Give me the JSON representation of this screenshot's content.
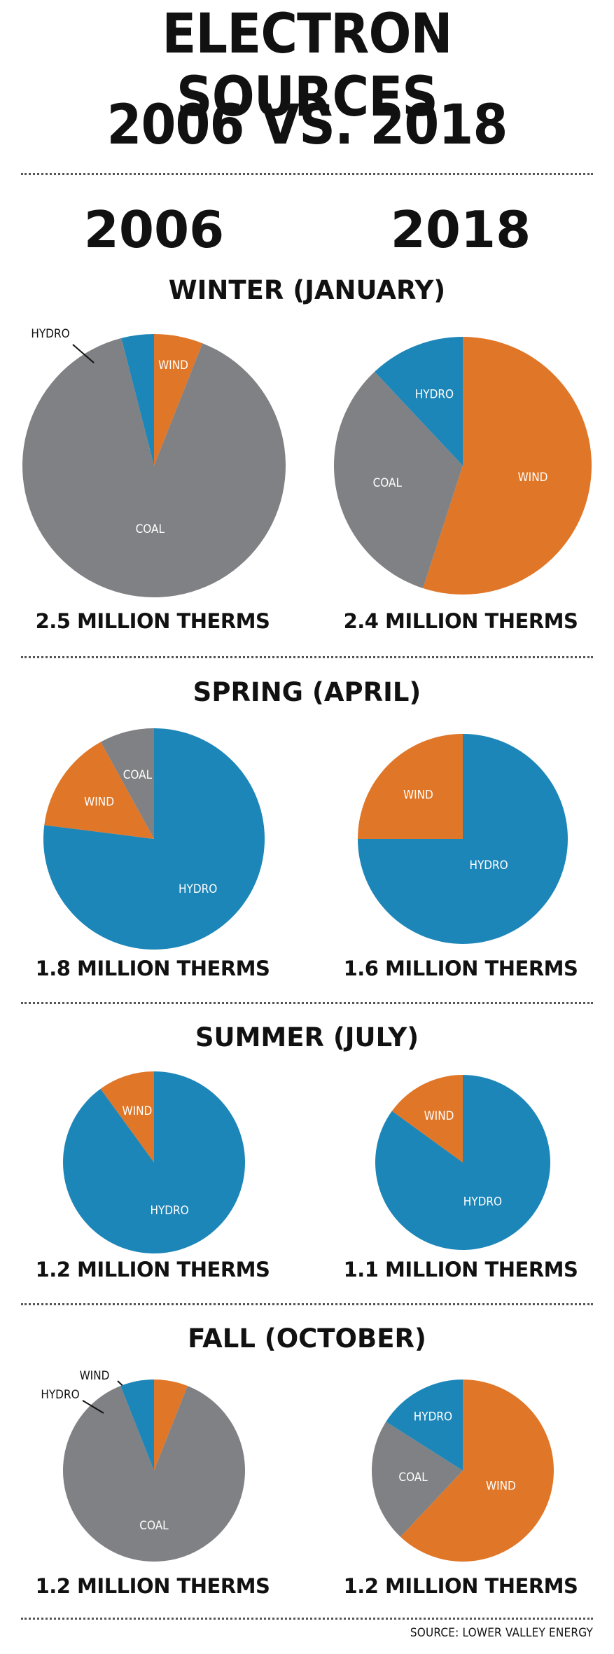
{
  "title": {
    "line1": "ELECTRON SOURCES",
    "line2": "2006 VS. 2018"
  },
  "years": [
    "2006",
    "2018"
  ],
  "colors": {
    "COAL": "#808184",
    "HYDRO": "#1d86b8",
    "WIND": "#e07627",
    "label": "#ffffff",
    "callout": "#111111"
  },
  "source": "SOURCE: LOWER VALLEY ENERGY",
  "chart_data": [
    {
      "type": "pie",
      "title": "WINTER (JANUARY)",
      "year": "2006",
      "total_label": "2.5 MILLION THERMS",
      "slices": [
        {
          "label": "WIND",
          "value": 6
        },
        {
          "label": "COAL",
          "value": 90
        },
        {
          "label": "HYDRO",
          "value": 4
        }
      ]
    },
    {
      "type": "pie",
      "title": "WINTER (JANUARY)",
      "year": "2018",
      "total_label": "2.4 MILLION THERMS",
      "slices": [
        {
          "label": "WIND",
          "value": 55
        },
        {
          "label": "COAL",
          "value": 33
        },
        {
          "label": "HYDRO",
          "value": 12
        }
      ]
    },
    {
      "type": "pie",
      "title": "SPRING (APRIL)",
      "year": "2006",
      "total_label": "1.8 MILLION THERMS",
      "slices": [
        {
          "label": "HYDRO",
          "value": 77
        },
        {
          "label": "WIND",
          "value": 15
        },
        {
          "label": "COAL",
          "value": 8
        }
      ]
    },
    {
      "type": "pie",
      "title": "SPRING (APRIL)",
      "year": "2018",
      "total_label": "1.6 MILLION THERMS",
      "slices": [
        {
          "label": "HYDRO",
          "value": 75
        },
        {
          "label": "WIND",
          "value": 25
        }
      ]
    },
    {
      "type": "pie",
      "title": "SUMMER (JULY)",
      "year": "2006",
      "total_label": "1.2 MILLION THERMS",
      "slices": [
        {
          "label": "HYDRO",
          "value": 90
        },
        {
          "label": "WIND",
          "value": 10
        }
      ]
    },
    {
      "type": "pie",
      "title": "SUMMER (JULY)",
      "year": "2018",
      "total_label": "1.1 MILLION THERMS",
      "slices": [
        {
          "label": "HYDRO",
          "value": 85
        },
        {
          "label": "WIND",
          "value": 15
        }
      ]
    },
    {
      "type": "pie",
      "title": "FALL (OCTOBER)",
      "year": "2006",
      "total_label": "1.2 MILLION THERMS",
      "slices": [
        {
          "label": "WIND",
          "value": 6
        },
        {
          "label": "COAL",
          "value": 88
        },
        {
          "label": "HYDRO",
          "value": 6
        }
      ]
    },
    {
      "type": "pie",
      "title": "FALL (OCTOBER)",
      "year": "2018",
      "total_label": "1.2 MILLION THERMS",
      "slices": [
        {
          "label": "WIND",
          "value": 62
        },
        {
          "label": "COAL",
          "value": 22
        },
        {
          "label": "HYDRO",
          "value": 16
        }
      ]
    }
  ]
}
